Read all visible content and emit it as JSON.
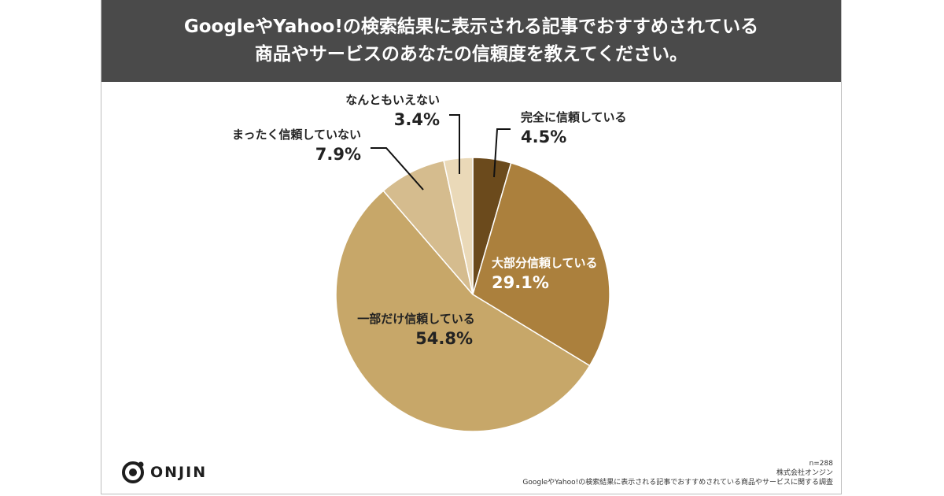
{
  "header": {
    "title_line1": "GoogleやYahoo!の検索結果に表示される記事でおすすめされている",
    "title_line2": "商品やサービスのあなたの信頼度を教えてください。"
  },
  "chart_data": {
    "type": "pie",
    "title": "GoogleやYahoo!の検索結果に表示される記事でおすすめされている商品やサービスのあなたの信頼度を教えてください。",
    "start": "12 o'clock, clockwise",
    "slices": [
      {
        "label": "完全に信頼している",
        "value": 4.5,
        "display": "4.5%",
        "color": "#6b4a1c"
      },
      {
        "label": "大部分信頼している",
        "value": 29.1,
        "display": "29.1%",
        "color": "#ab803d"
      },
      {
        "label": "一部だけ信頼している",
        "value": 54.8,
        "display": "54.8%",
        "color": "#c7a769"
      },
      {
        "label": "まったく信頼していない",
        "value": 7.9,
        "display": "7.9%",
        "color": "#d5bc8e"
      },
      {
        "label": "なんともいえない",
        "value": 3.4,
        "display": "3.4%",
        "color": "#ead9b8"
      }
    ]
  },
  "footer": {
    "logo_text": "ONJIN",
    "sample_size": "n=288",
    "company": "株式会社オンジン",
    "survey_name": "GoogleやYahoo!の検索結果に表示される記事でおすすめされている商品やサービスに関する調査"
  }
}
